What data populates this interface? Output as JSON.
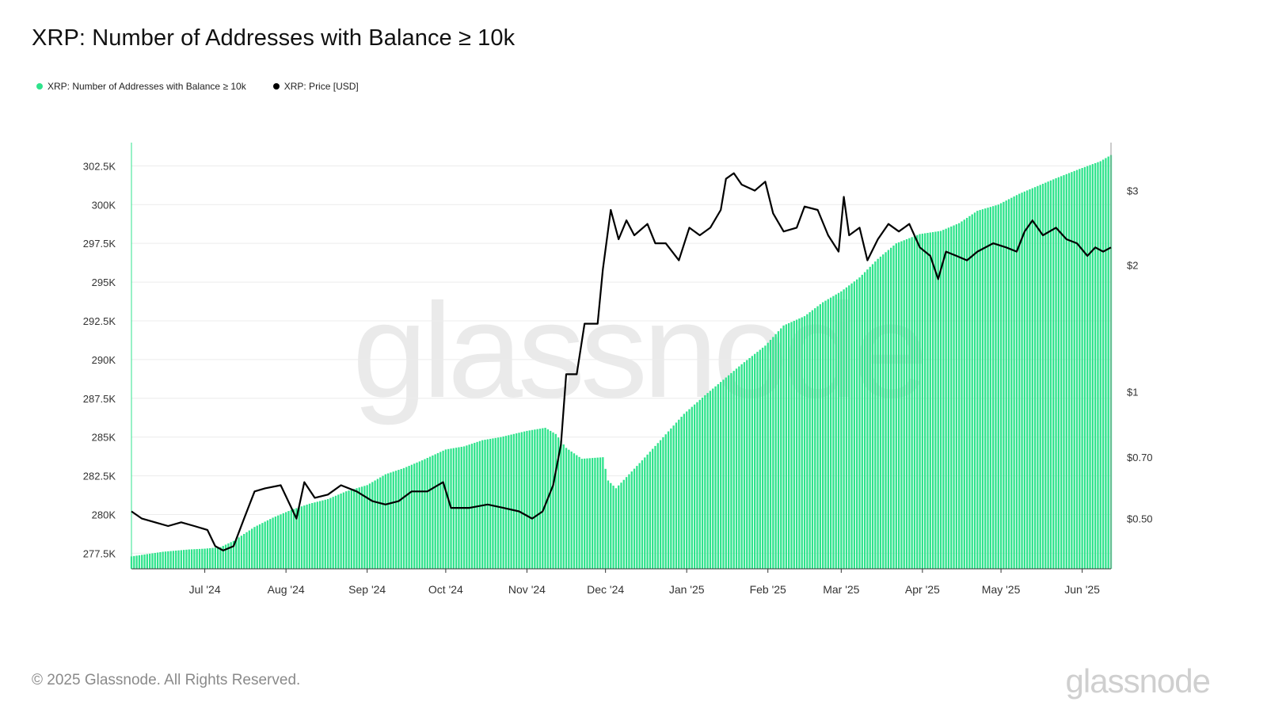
{
  "title": "XRP: Number of Addresses with Balance ≥ 10k",
  "legend": [
    {
      "label": "XRP: Number of Addresses with Balance ≥ 10k",
      "color": "#2fe38c"
    },
    {
      "label": "XRP: Price [USD]",
      "color": "#000000"
    }
  ],
  "footer": "© 2025 Glassnode. All Rights Reserved.",
  "brand": "glassnode",
  "watermark": "glassnode",
  "chart_data": {
    "type": "bar",
    "x_ticks": [
      "Jul '24",
      "Aug '24",
      "Sep '24",
      "Oct '24",
      "Nov '24",
      "Dec '24",
      "Jan '25",
      "Feb '25",
      "Mar '25",
      "Apr '25",
      "May '25",
      "Jun '25"
    ],
    "x_range": [
      "2024-06-03",
      "2025-06-12"
    ],
    "y_left": {
      "ticks": [
        277500,
        280000,
        282500,
        285000,
        287500,
        290000,
        292500,
        295000,
        297500,
        300000,
        302500
      ],
      "tick_labels": [
        "277.5K",
        "280K",
        "282.5K",
        "285K",
        "287.5K",
        "290K",
        "292.5K",
        "295K",
        "297.5K",
        "300K",
        "302.5K"
      ],
      "range": [
        276500,
        304000
      ]
    },
    "y_right": {
      "scale": "log",
      "ticks": [
        0.5,
        0.7,
        1,
        2,
        3
      ],
      "tick_labels": [
        "$0.50",
        "$0.70",
        "$1",
        "$2",
        "$3"
      ],
      "range": [
        0.38,
        3.9
      ]
    },
    "series": [
      {
        "name": "XRP: Number of Addresses with Balance ≥ 10k",
        "type": "bar",
        "axis": "left",
        "color": "#2fe38c",
        "points": [
          [
            "2024-06-03",
            277300
          ],
          [
            "2024-06-15",
            277600
          ],
          [
            "2024-06-25",
            277750
          ],
          [
            "2024-07-01",
            277800
          ],
          [
            "2024-07-07",
            277900
          ],
          [
            "2024-07-12",
            278300
          ],
          [
            "2024-07-20",
            279200
          ],
          [
            "2024-07-27",
            279800
          ],
          [
            "2024-08-03",
            280300
          ],
          [
            "2024-08-10",
            280700
          ],
          [
            "2024-08-17",
            281000
          ],
          [
            "2024-08-24",
            281500
          ],
          [
            "2024-09-01",
            281900
          ],
          [
            "2024-09-08",
            282600
          ],
          [
            "2024-09-15",
            283000
          ],
          [
            "2024-09-22",
            283500
          ],
          [
            "2024-10-01",
            284200
          ],
          [
            "2024-10-08",
            284400
          ],
          [
            "2024-10-15",
            284800
          ],
          [
            "2024-10-22",
            285000
          ],
          [
            "2024-11-01",
            285400
          ],
          [
            "2024-11-08",
            285600
          ],
          [
            "2024-11-12",
            285200
          ],
          [
            "2024-11-16",
            284300
          ],
          [
            "2024-11-22",
            283600
          ],
          [
            "2024-11-30",
            283700
          ],
          [
            "2024-12-02",
            282200
          ],
          [
            "2024-12-05",
            281700
          ],
          [
            "2024-12-10",
            282600
          ],
          [
            "2024-12-15",
            283500
          ],
          [
            "2024-12-22",
            284800
          ],
          [
            "2024-12-31",
            286500
          ],
          [
            "2025-01-08",
            287700
          ],
          [
            "2025-01-15",
            288700
          ],
          [
            "2025-01-22",
            289700
          ],
          [
            "2025-01-31",
            290900
          ],
          [
            "2025-02-07",
            292200
          ],
          [
            "2025-02-15",
            292800
          ],
          [
            "2025-02-22",
            293700
          ],
          [
            "2025-03-01",
            294400
          ],
          [
            "2025-03-08",
            295300
          ],
          [
            "2025-03-15",
            296500
          ],
          [
            "2025-03-22",
            297500
          ],
          [
            "2025-03-31",
            298100
          ],
          [
            "2025-04-08",
            298300
          ],
          [
            "2025-04-15",
            298800
          ],
          [
            "2025-04-22",
            299600
          ],
          [
            "2025-04-30",
            300000
          ],
          [
            "2025-05-08",
            300700
          ],
          [
            "2025-05-15",
            301200
          ],
          [
            "2025-05-22",
            301700
          ],
          [
            "2025-05-31",
            302300
          ],
          [
            "2025-06-08",
            302800
          ],
          [
            "2025-06-12",
            303200
          ]
        ]
      },
      {
        "name": "XRP: Price [USD]",
        "type": "line",
        "axis": "right",
        "color": "#000000",
        "points": [
          [
            "2024-06-03",
            0.52
          ],
          [
            "2024-06-07",
            0.5
          ],
          [
            "2024-06-12",
            0.49
          ],
          [
            "2024-06-17",
            0.48
          ],
          [
            "2024-06-22",
            0.49
          ],
          [
            "2024-06-27",
            0.48
          ],
          [
            "2024-07-02",
            0.47
          ],
          [
            "2024-07-05",
            0.43
          ],
          [
            "2024-07-08",
            0.42
          ],
          [
            "2024-07-12",
            0.43
          ],
          [
            "2024-07-16",
            0.5
          ],
          [
            "2024-07-20",
            0.58
          ],
          [
            "2024-07-24",
            0.59
          ],
          [
            "2024-07-30",
            0.6
          ],
          [
            "2024-08-05",
            0.5
          ],
          [
            "2024-08-08",
            0.61
          ],
          [
            "2024-08-12",
            0.56
          ],
          [
            "2024-08-17",
            0.57
          ],
          [
            "2024-08-22",
            0.6
          ],
          [
            "2024-08-28",
            0.58
          ],
          [
            "2024-09-03",
            0.55
          ],
          [
            "2024-09-08",
            0.54
          ],
          [
            "2024-09-13",
            0.55
          ],
          [
            "2024-09-18",
            0.58
          ],
          [
            "2024-09-24",
            0.58
          ],
          [
            "2024-09-30",
            0.61
          ],
          [
            "2024-10-03",
            0.53
          ],
          [
            "2024-10-10",
            0.53
          ],
          [
            "2024-10-17",
            0.54
          ],
          [
            "2024-10-23",
            0.53
          ],
          [
            "2024-10-29",
            0.52
          ],
          [
            "2024-11-03",
            0.5
          ],
          [
            "2024-11-07",
            0.52
          ],
          [
            "2024-11-11",
            0.6
          ],
          [
            "2024-11-14",
            0.75
          ],
          [
            "2024-11-16",
            1.1
          ],
          [
            "2024-11-20",
            1.1
          ],
          [
            "2024-11-23",
            1.45
          ],
          [
            "2024-11-28",
            1.45
          ],
          [
            "2024-11-30",
            1.95
          ],
          [
            "2024-12-03",
            2.7
          ],
          [
            "2024-12-06",
            2.3
          ],
          [
            "2024-12-09",
            2.55
          ],
          [
            "2024-12-12",
            2.35
          ],
          [
            "2024-12-17",
            2.5
          ],
          [
            "2024-12-20",
            2.25
          ],
          [
            "2024-12-24",
            2.25
          ],
          [
            "2024-12-29",
            2.05
          ],
          [
            "2025-01-02",
            2.45
          ],
          [
            "2025-01-06",
            2.35
          ],
          [
            "2025-01-10",
            2.45
          ],
          [
            "2025-01-14",
            2.7
          ],
          [
            "2025-01-16",
            3.2
          ],
          [
            "2025-01-19",
            3.3
          ],
          [
            "2025-01-22",
            3.1
          ],
          [
            "2025-01-27",
            3.0
          ],
          [
            "2025-01-31",
            3.15
          ],
          [
            "2025-02-03",
            2.65
          ],
          [
            "2025-02-07",
            2.4
          ],
          [
            "2025-02-12",
            2.45
          ],
          [
            "2025-02-15",
            2.75
          ],
          [
            "2025-02-20",
            2.7
          ],
          [
            "2025-02-24",
            2.35
          ],
          [
            "2025-02-28",
            2.15
          ],
          [
            "2025-03-02",
            2.9
          ],
          [
            "2025-03-04",
            2.35
          ],
          [
            "2025-03-08",
            2.45
          ],
          [
            "2025-03-11",
            2.05
          ],
          [
            "2025-03-15",
            2.3
          ],
          [
            "2025-03-19",
            2.5
          ],
          [
            "2025-03-23",
            2.4
          ],
          [
            "2025-03-27",
            2.5
          ],
          [
            "2025-03-31",
            2.2
          ],
          [
            "2025-04-04",
            2.1
          ],
          [
            "2025-04-07",
            1.85
          ],
          [
            "2025-04-10",
            2.15
          ],
          [
            "2025-04-14",
            2.1
          ],
          [
            "2025-04-18",
            2.05
          ],
          [
            "2025-04-22",
            2.15
          ],
          [
            "2025-04-28",
            2.25
          ],
          [
            "2025-05-03",
            2.2
          ],
          [
            "2025-05-07",
            2.15
          ],
          [
            "2025-05-10",
            2.4
          ],
          [
            "2025-05-13",
            2.55
          ],
          [
            "2025-05-17",
            2.35
          ],
          [
            "2025-05-22",
            2.45
          ],
          [
            "2025-05-26",
            2.3
          ],
          [
            "2025-05-30",
            2.25
          ],
          [
            "2025-06-03",
            2.1
          ],
          [
            "2025-06-06",
            2.2
          ],
          [
            "2025-06-09",
            2.15
          ],
          [
            "2025-06-12",
            2.2
          ]
        ]
      }
    ],
    "grid": true,
    "legend_position": "top-left"
  }
}
